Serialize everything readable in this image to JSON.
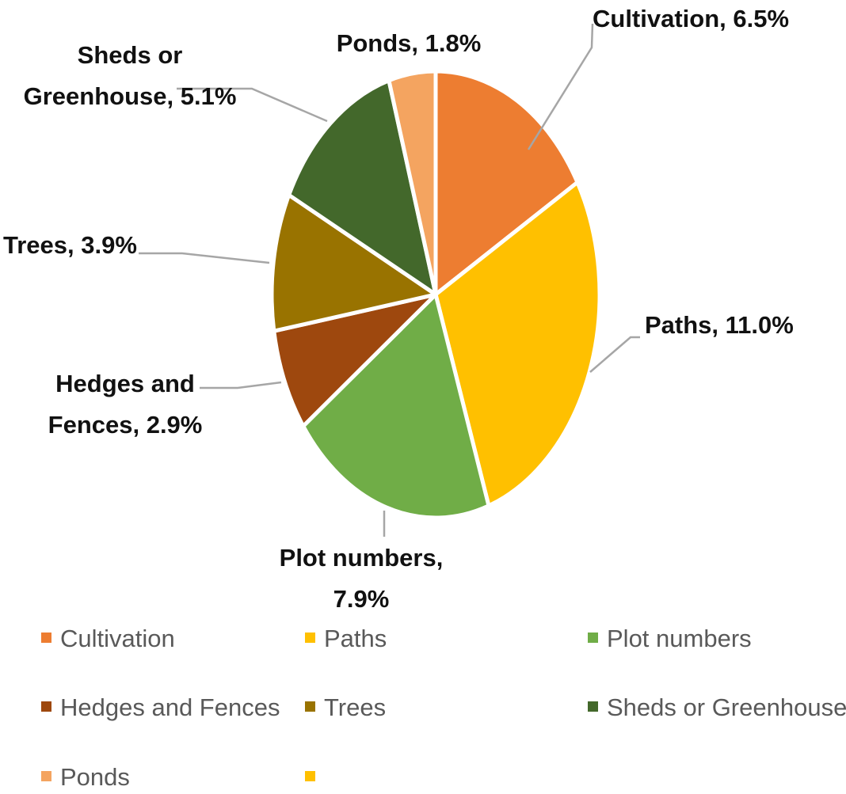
{
  "chart_data": {
    "type": "pie",
    "title": "",
    "slices": [
      {
        "name": "Cultivation",
        "value": 6.5,
        "label": "Cultivation, 6.5%",
        "color": "#ED7D31"
      },
      {
        "name": "Paths",
        "value": 11.0,
        "label": "Paths, 11.0%",
        "color": "#FFC000"
      },
      {
        "name": "Plot numbers",
        "value": 7.9,
        "label": "Plot numbers, 7.9%",
        "color": "#70AD47"
      },
      {
        "name": "Hedges and Fences",
        "value": 2.9,
        "label": "Hedges and Fences, 2.9%",
        "color": "#9E480E"
      },
      {
        "name": "Trees",
        "value": 3.9,
        "label": "Trees, 3.9%",
        "color": "#997300"
      },
      {
        "name": "Sheds or Greenhouse",
        "value": 5.1,
        "label": "Sheds or Greenhouse, 5.1%",
        "color": "#43682B"
      },
      {
        "name": "Ponds",
        "value": 1.8,
        "label": "Ponds, 1.8%",
        "color": "#F4A460"
      }
    ],
    "label_lines": [
      [
        "Cultivation, 6.5%"
      ],
      [
        "Paths, 11.0%"
      ],
      [
        "Plot numbers,",
        "7.9%"
      ],
      [
        "Hedges and",
        "Fences, 2.9%"
      ],
      [
        "Trees, 3.9%"
      ],
      [
        "Sheds or",
        "Greenhouse, 5.1%"
      ],
      [
        "Ponds, 1.8%"
      ]
    ],
    "legend": {
      "placement": "bottom",
      "entries": [
        {
          "name": "Cultivation",
          "color": "#ED7D31"
        },
        {
          "name": "Paths",
          "color": "#FFC000"
        },
        {
          "name": "Plot numbers",
          "color": "#70AD47"
        },
        {
          "name": "Hedges and Fences",
          "color": "#9E480E"
        },
        {
          "name": "Trees",
          "color": "#997300"
        },
        {
          "name": "Sheds or Greenhouse",
          "color": "#43682B"
        },
        {
          "name": "Ponds",
          "color": "#F4A460"
        },
        {
          "name": "",
          "color": "#FFC000"
        }
      ]
    }
  }
}
